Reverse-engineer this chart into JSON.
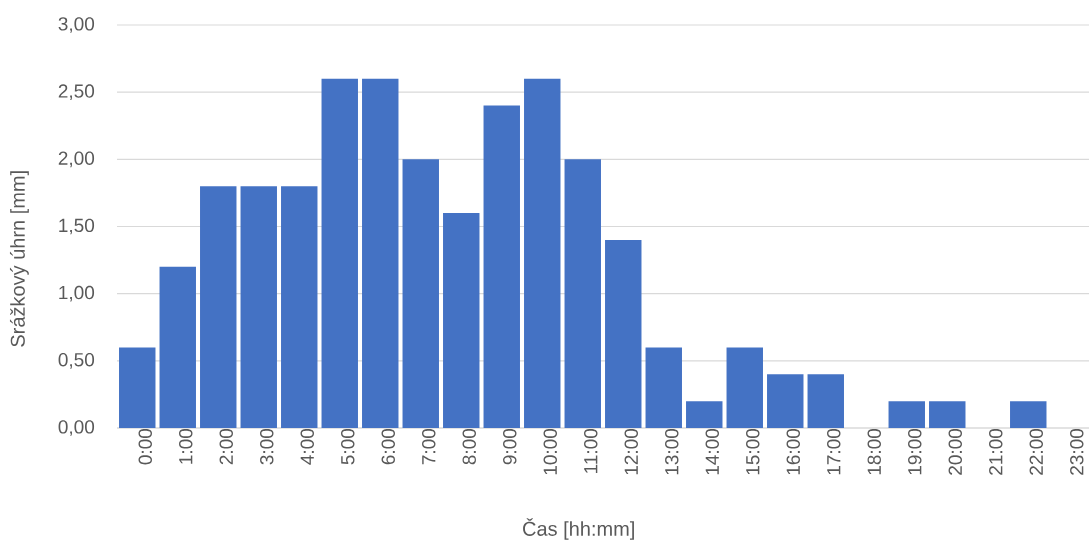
{
  "chart_data": {
    "type": "bar",
    "xlabel": "Čas [hh:mm]",
    "ylabel": "Srážkový úhrn [mm]",
    "categories": [
      "0:00",
      "1:00",
      "2:00",
      "3:00",
      "4:00",
      "5:00",
      "6:00",
      "7:00",
      "8:00",
      "9:00",
      "10:00",
      "11:00",
      "12:00",
      "13:00",
      "14:00",
      "15:00",
      "16:00",
      "17:00",
      "18:00",
      "19:00",
      "20:00",
      "21:00",
      "22:00",
      "23:00"
    ],
    "values": [
      0.6,
      1.2,
      1.8,
      1.8,
      1.8,
      2.6,
      2.6,
      2.0,
      1.6,
      2.4,
      2.6,
      2.0,
      1.4,
      0.6,
      0.2,
      0.6,
      0.4,
      0.4,
      0,
      0.2,
      0.2,
      0,
      0.2,
      0
    ],
    "color": "#4472c4",
    "ylim": [
      0,
      3
    ],
    "yticks": [
      {
        "value": 0,
        "label": "0,00"
      },
      {
        "value": 0.5,
        "label": "0,50"
      },
      {
        "value": 1,
        "label": "1,00"
      },
      {
        "value": 1.5,
        "label": "1,50"
      },
      {
        "value": 2,
        "label": "2,00"
      },
      {
        "value": 2.5,
        "label": "2,50"
      },
      {
        "value": 3,
        "label": "3,00"
      }
    ],
    "grid": "y"
  }
}
